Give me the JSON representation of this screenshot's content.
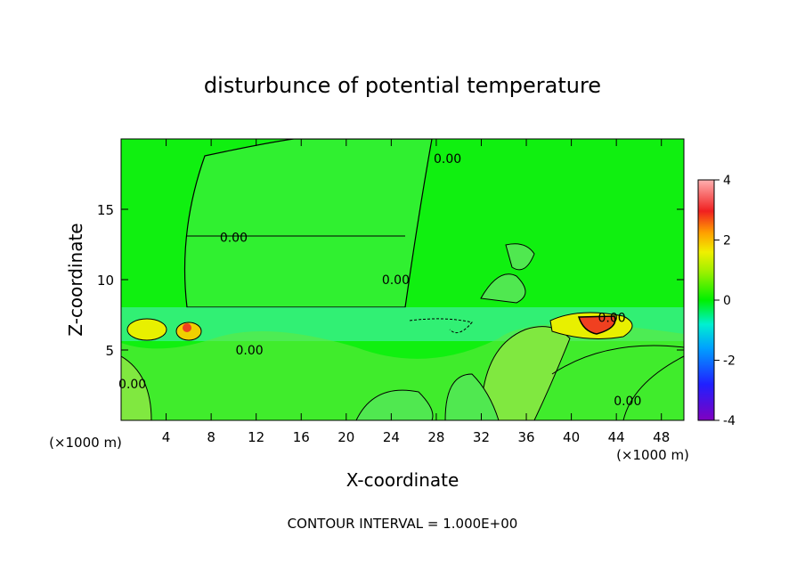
{
  "chart_data": {
    "type": "contour",
    "title": "disturbunce of potential temperature",
    "x_label": "X-coordinate",
    "y_label": "Z-coordinate",
    "x_unit_left": "(×1000 m)",
    "x_unit_right": "(×1000 m)",
    "footnote": "CONTOUR INTERVAL = 1.000E+00",
    "xlim": [
      0,
      50
    ],
    "ylim": [
      0,
      20
    ],
    "xticks": [
      4,
      8,
      12,
      16,
      20,
      24,
      28,
      32,
      36,
      40,
      44,
      48
    ],
    "yticks": [
      5,
      10,
      15
    ],
    "colorbar_lim": [
      -4,
      4
    ],
    "colorbar_ticks": [
      4,
      2,
      0,
      -2,
      -4
    ],
    "annotations": [
      {
        "text": "0.00",
        "x": 10,
        "y": 13
      },
      {
        "text": "0.00",
        "x": 29,
        "y": 18.6
      },
      {
        "text": "0.00",
        "x": 24.4,
        "y": 10
      },
      {
        "text": "0.00",
        "x": 11.4,
        "y": 5
      },
      {
        "text": "0.00",
        "x": 1,
        "y": 2.6
      },
      {
        "text": "0.00",
        "x": 45,
        "y": 1.4
      },
      {
        "text": "0.00",
        "x": 43.6,
        "y": 7.3
      }
    ]
  }
}
